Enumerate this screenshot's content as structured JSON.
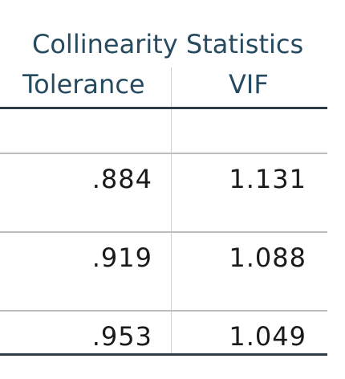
{
  "table": {
    "group_header": "Collinearity Statistics",
    "columns": [
      "Tolerance",
      "VIF"
    ],
    "rows": [
      {
        "tolerance": ".884",
        "vif": "1.131"
      },
      {
        "tolerance": ".919",
        "vif": "1.088"
      },
      {
        "tolerance": ".953",
        "vif": "1.049"
      }
    ]
  },
  "colors": {
    "header_text": "#264a5f",
    "cell_text": "#1a1a1a",
    "rule_dark": "#2e3c45",
    "rule_light": "#bdbdbd"
  }
}
